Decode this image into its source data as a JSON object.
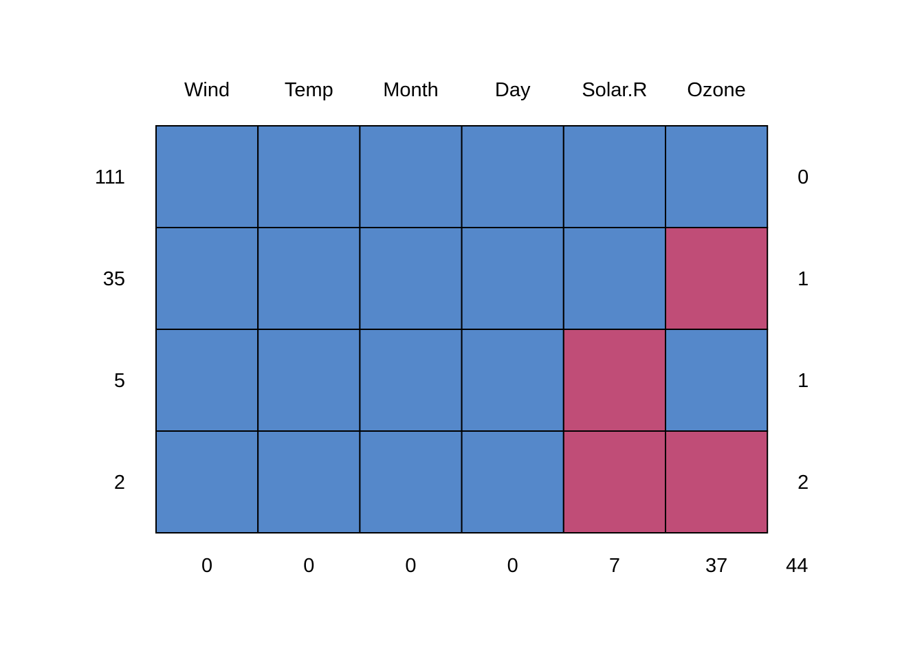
{
  "chart_data": {
    "type": "heatmap",
    "columns": [
      "Wind",
      "Temp",
      "Month",
      "Day",
      "Solar.R",
      "Ozone"
    ],
    "row_counts": [
      "111",
      "35",
      "5",
      "2"
    ],
    "row_missing_totals": [
      "0",
      "1",
      "1",
      "2"
    ],
    "column_missing_totals": [
      "0",
      "0",
      "0",
      "0",
      "7",
      "37"
    ],
    "grand_total_missing": "44",
    "pattern": [
      [
        1,
        1,
        1,
        1,
        1,
        1
      ],
      [
        1,
        1,
        1,
        1,
        1,
        0
      ],
      [
        1,
        1,
        1,
        1,
        0,
        1
      ],
      [
        1,
        1,
        1,
        1,
        0,
        0
      ]
    ],
    "colors": {
      "observed": "#5588CA",
      "missing": "#C04D77",
      "border": "#000000"
    }
  }
}
